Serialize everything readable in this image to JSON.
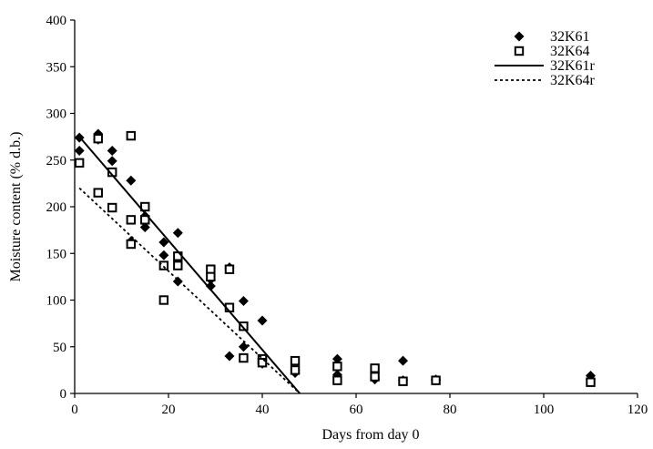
{
  "chart_data": {
    "type": "scatter",
    "xlabel": "Days from day 0",
    "ylabel": "Moisture content (% d.b.)",
    "xlim": [
      0,
      120
    ],
    "ylim": [
      0,
      400
    ],
    "x_ticks": [
      "0",
      "20",
      "40",
      "60",
      "80",
      "100",
      "120"
    ],
    "y_ticks": [
      "0",
      "50",
      "100",
      "150",
      "200",
      "250",
      "300",
      "350",
      "400"
    ],
    "grid": false,
    "legend_position": "top-right",
    "series": [
      {
        "name": "32K61",
        "marker": "filled-diamond",
        "color": "#000000",
        "points": [
          [
            1,
            274
          ],
          [
            1,
            260
          ],
          [
            5,
            278
          ],
          [
            5,
            272
          ],
          [
            8,
            260
          ],
          [
            8,
            249
          ],
          [
            12,
            228
          ],
          [
            12,
            163
          ],
          [
            15,
            190
          ],
          [
            15,
            178
          ],
          [
            19,
            162
          ],
          [
            19,
            148
          ],
          [
            22,
            172
          ],
          [
            22,
            120
          ],
          [
            29,
            122
          ],
          [
            29,
            115
          ],
          [
            33,
            135
          ],
          [
            33,
            40
          ],
          [
            36,
            99
          ],
          [
            36,
            50
          ],
          [
            40,
            78
          ],
          [
            40,
            32
          ],
          [
            47,
            25
          ],
          [
            47,
            22
          ],
          [
            56,
            37
          ],
          [
            56,
            20
          ],
          [
            64,
            17
          ],
          [
            64,
            15
          ],
          [
            70,
            35
          ],
          [
            70,
            14
          ],
          [
            77,
            14
          ],
          [
            77,
            15
          ],
          [
            110,
            19
          ],
          [
            110,
            15
          ]
        ]
      },
      {
        "name": "32K64",
        "marker": "open-square",
        "color": "#000000",
        "points": [
          [
            1,
            247
          ],
          [
            5,
            273
          ],
          [
            5,
            215
          ],
          [
            8,
            237
          ],
          [
            8,
            199
          ],
          [
            12,
            276
          ],
          [
            12,
            186
          ],
          [
            12,
            160
          ],
          [
            15,
            200
          ],
          [
            15,
            186
          ],
          [
            19,
            137
          ],
          [
            19,
            100
          ],
          [
            22,
            147
          ],
          [
            22,
            137
          ],
          [
            29,
            133
          ],
          [
            29,
            125
          ],
          [
            33,
            133
          ],
          [
            33,
            92
          ],
          [
            36,
            72
          ],
          [
            36,
            38
          ],
          [
            40,
            37
          ],
          [
            40,
            33
          ],
          [
            47,
            35
          ],
          [
            47,
            25
          ],
          [
            56,
            29
          ],
          [
            56,
            14
          ],
          [
            64,
            27
          ],
          [
            64,
            18
          ],
          [
            70,
            13
          ],
          [
            77,
            14
          ],
          [
            110,
            12
          ]
        ]
      },
      {
        "name": "32K61r",
        "line_style": "solid",
        "color": "#000000",
        "points": [
          [
            1,
            275
          ],
          [
            48,
            0
          ]
        ]
      },
      {
        "name": "32K64r",
        "line_style": "dotted",
        "color": "#000000",
        "points": [
          [
            1,
            220
          ],
          [
            48,
            0
          ]
        ]
      }
    ]
  }
}
